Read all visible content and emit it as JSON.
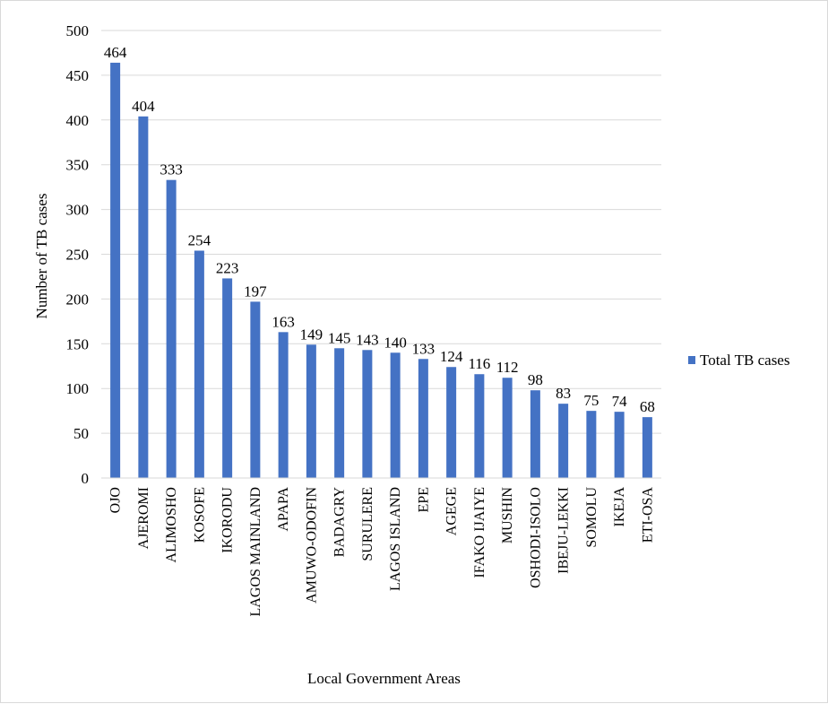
{
  "chart_data": {
    "type": "bar",
    "title": "",
    "xlabel": "Local Government Areas",
    "ylabel": "Number of TB cases",
    "ylim": [
      0,
      500
    ],
    "yticks": [
      0,
      50,
      100,
      150,
      200,
      250,
      300,
      350,
      400,
      450,
      500
    ],
    "grid": true,
    "legend_position": "right",
    "categories": [
      "OJO",
      "AJEROMI",
      "ALIMOSHO",
      "KOSOFE",
      "IKORODU",
      "LAGOS MAINLAND",
      "APAPA",
      "AMUWO-ODOFIN",
      "BADAGRY",
      "SURULERE",
      "LAGOS ISLAND",
      "EPE",
      "AGEGE",
      "IFAKO IJAIYE",
      "MUSHIN",
      "OSHODI-ISOLO",
      "IBEJU-LEKKI",
      "SOMOLU",
      "IKEJA",
      "ETI-OSA"
    ],
    "series": [
      {
        "name": "Total TB cases",
        "color": "#4472C4",
        "values": [
          464,
          404,
          333,
          254,
          223,
          197,
          163,
          149,
          145,
          143,
          140,
          133,
          124,
          116,
          112,
          98,
          83,
          75,
          74,
          68
        ]
      }
    ]
  }
}
